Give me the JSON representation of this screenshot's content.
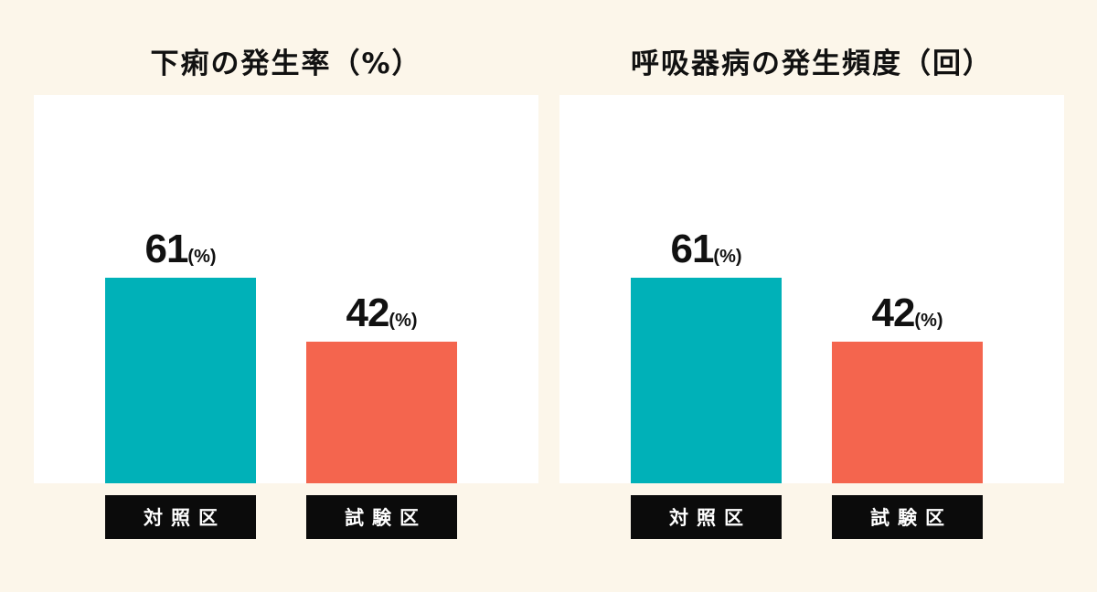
{
  "chart_data": [
    {
      "type": "bar",
      "title": "下痢の発生率（%）",
      "categories": [
        "対照区",
        "試験区"
      ],
      "values": [
        61,
        42
      ],
      "value_unit": "(%)",
      "colors": [
        "#00b1b8",
        "#f4654e"
      ],
      "ylim": [
        0,
        115
      ],
      "grid": false
    },
    {
      "type": "bar",
      "title": "呼吸器病の発生頻度（回）",
      "categories": [
        "対照区",
        "試験区"
      ],
      "values": [
        61,
        42
      ],
      "value_unit": "(%)",
      "colors": [
        "#00b1b8",
        "#f4654e"
      ],
      "ylim": [
        0,
        115
      ],
      "grid": false
    }
  ]
}
